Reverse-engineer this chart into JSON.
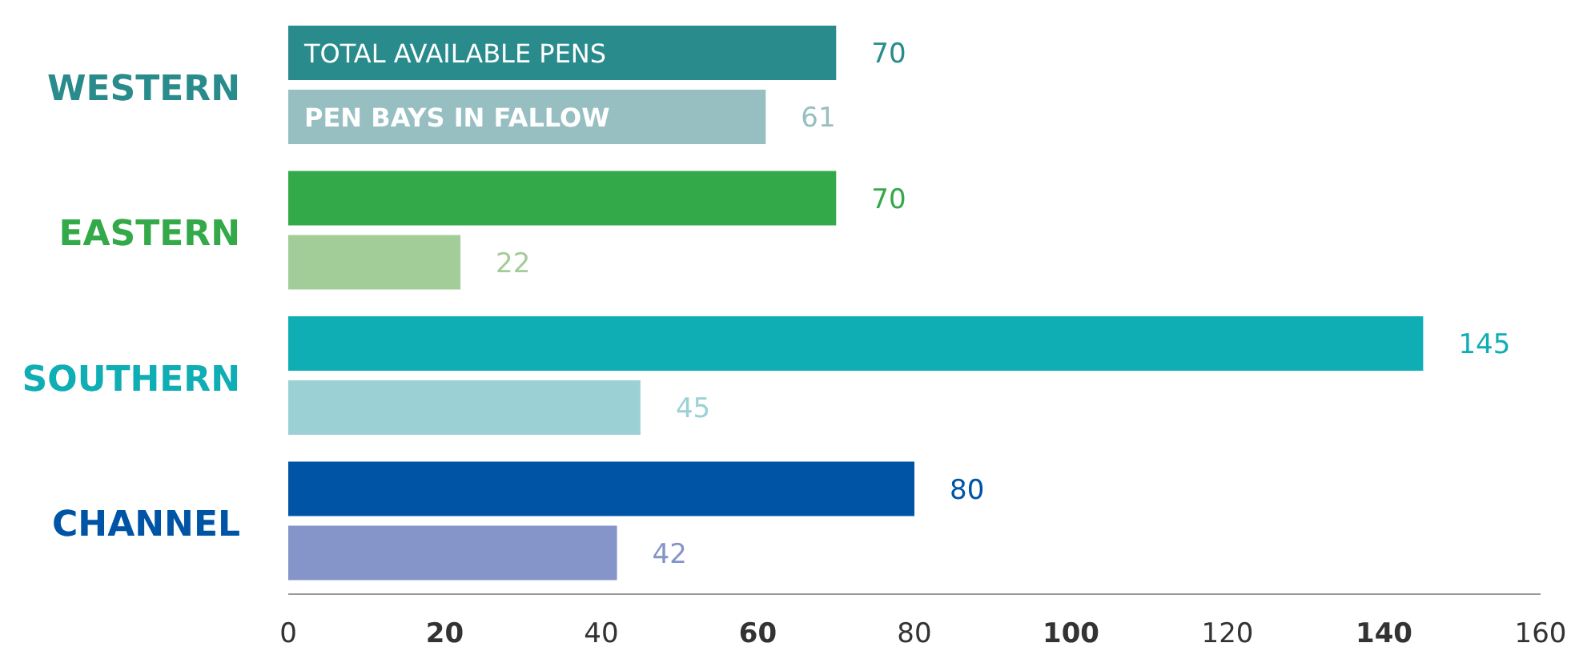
{
  "chart_data": {
    "type": "bar",
    "orientation": "horizontal",
    "categories": [
      "WESTERN",
      "EASTERN",
      "SOUTHERN",
      "CHANNEL"
    ],
    "series": [
      {
        "name": "TOTAL AVAILABLE PENS",
        "colors": [
          "#2a8b8c",
          "#34a94a",
          "#0fadb4",
          "#0054a6"
        ],
        "values": [
          70,
          70,
          145,
          80
        ]
      },
      {
        "name": "PEN BAYS IN FALLOW",
        "colors": [
          "#97bfc1",
          "#a2cc98",
          "#9bd1d5",
          "#8594c9"
        ],
        "values": [
          61,
          22,
          45,
          42
        ]
      }
    ],
    "xlim": [
      0,
      160
    ],
    "xticks": [
      0,
      20,
      40,
      60,
      80,
      100,
      120,
      140,
      160
    ],
    "data_labels": true,
    "grid": false,
    "legend": false
  }
}
